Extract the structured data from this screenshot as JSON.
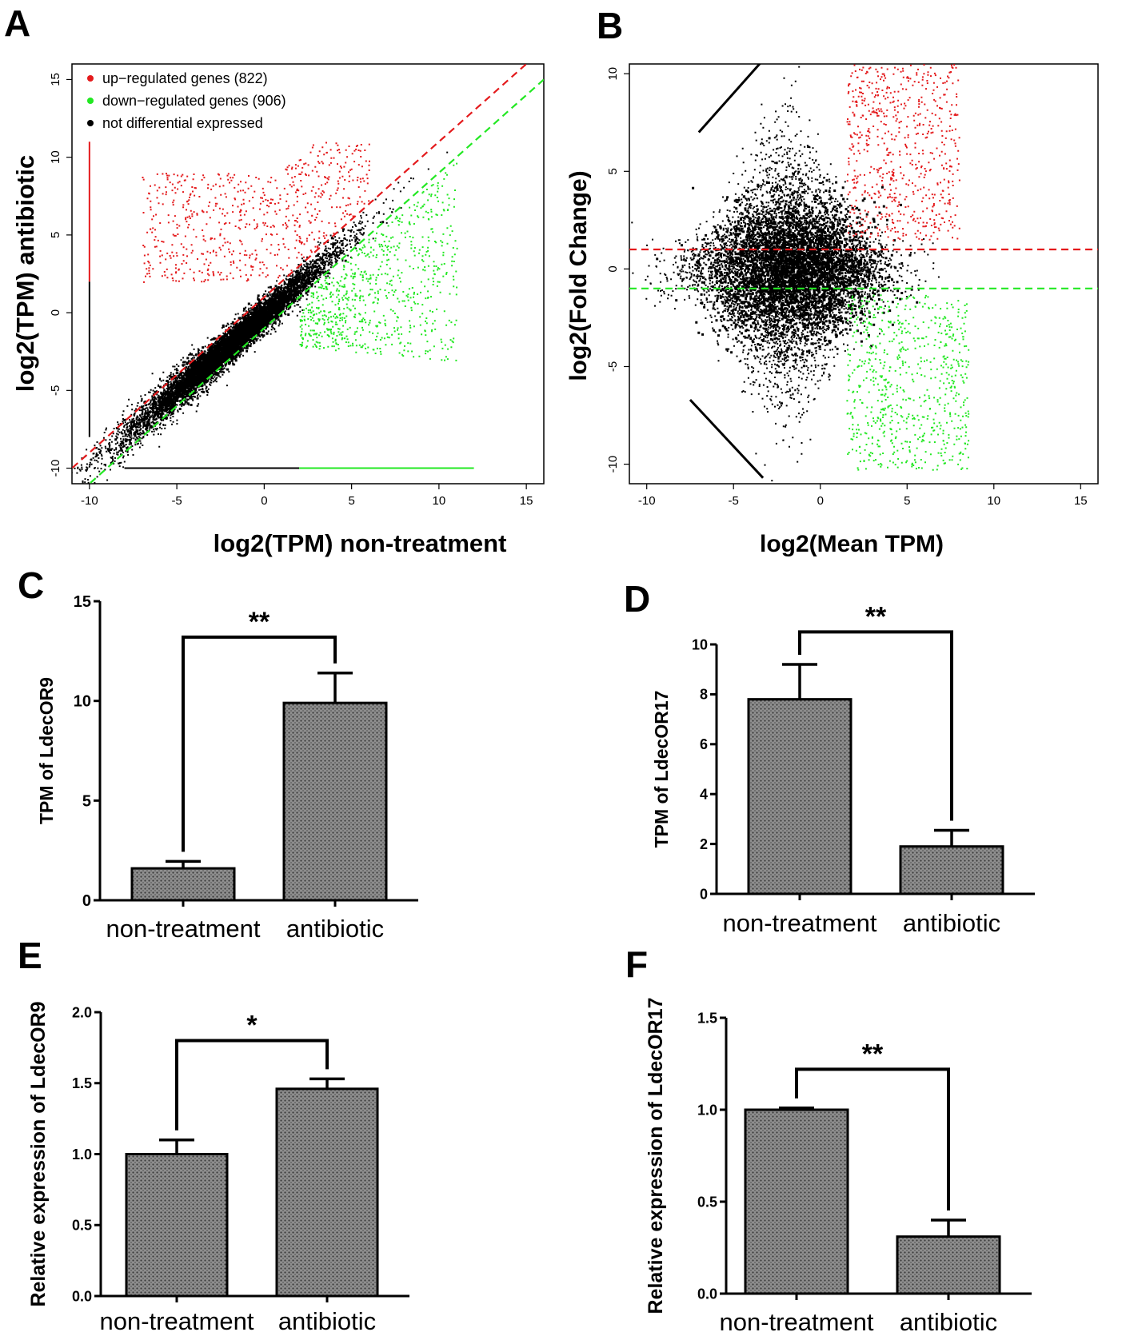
{
  "figure": {
    "colors": {
      "up": "#e41a1c",
      "down": "#22e822",
      "neutral": "#000000",
      "bar_fill": "#8a8a8a"
    }
  },
  "chart_data": [
    {
      "id": "A",
      "panel_label": "A",
      "type": "scatter",
      "xlabel": "log2(TPM) non-treatment",
      "ylabel": "log2(TPM) antibiotic",
      "xlim": [
        -11,
        16
      ],
      "ylim": [
        -11,
        16
      ],
      "xticks": [
        -10,
        -5,
        0,
        5,
        10,
        15
      ],
      "yticks": [
        -10,
        -5,
        0,
        5,
        10,
        15
      ],
      "legend": [
        {
          "label": "up−regulated genes (822)",
          "color": "#e41a1c"
        },
        {
          "label": "down−regulated genes (906)",
          "color": "#22e822"
        },
        {
          "label": "not differential expressed",
          "color": "#000000"
        }
      ],
      "threshold_lines": [
        {
          "color": "#e41a1c",
          "style": "dashed",
          "slope": 1,
          "intercept": 1
        },
        {
          "color": "#22e822",
          "style": "dashed",
          "slope": 1,
          "intercept": -1
        }
      ],
      "series": [
        {
          "name": "up-regulated genes",
          "count": 822,
          "color": "#e41a1c"
        },
        {
          "name": "down-regulated genes",
          "count": 906,
          "color": "#22e822"
        },
        {
          "name": "not differential expressed",
          "color": "#000000"
        }
      ]
    },
    {
      "id": "B",
      "panel_label": "B",
      "type": "scatter",
      "xlabel": "log2(Mean TPM)",
      "ylabel": "log2(Fold Change)",
      "xlim": [
        -11,
        16
      ],
      "ylim": [
        -11,
        10.5
      ],
      "xticks": [
        -10,
        -5,
        0,
        5,
        10,
        15
      ],
      "yticks": [
        -10,
        -5,
        0,
        5,
        10
      ],
      "threshold_lines": [
        {
          "color": "#e41a1c",
          "style": "dashed",
          "y": 1
        },
        {
          "color": "#22e822",
          "style": "dashed",
          "y": -1
        }
      ],
      "series": [
        {
          "name": "up-regulated genes",
          "color": "#e41a1c"
        },
        {
          "name": "down-regulated genes",
          "color": "#22e822"
        },
        {
          "name": "not differential expressed",
          "color": "#000000"
        }
      ]
    },
    {
      "id": "C",
      "panel_label": "C",
      "type": "bar",
      "categories": [
        "non-treatment",
        "antibiotic"
      ],
      "values": [
        1.6,
        9.9
      ],
      "errors": [
        0.35,
        1.5
      ],
      "ylabel": "TPM of LdecOR9",
      "ylim": [
        0,
        15
      ],
      "yticks": [
        0,
        5,
        10,
        15
      ],
      "significance": "**"
    },
    {
      "id": "D",
      "panel_label": "D",
      "type": "bar",
      "categories": [
        "non-treatment",
        "antibiotic"
      ],
      "values": [
        7.8,
        1.9
      ],
      "errors": [
        1.4,
        0.65
      ],
      "ylabel": "TPM of LdecOR17",
      "ylim": [
        0,
        10
      ],
      "yticks": [
        0,
        2,
        4,
        6,
        8,
        10
      ],
      "significance": "**"
    },
    {
      "id": "E",
      "panel_label": "E",
      "type": "bar",
      "categories": [
        "non-treatment",
        "antibiotic"
      ],
      "values": [
        1.0,
        1.46
      ],
      "errors": [
        0.1,
        0.07
      ],
      "ylabel": "Relative expression of LdecOR9",
      "ylim": [
        0,
        2
      ],
      "yticks": [
        "0.0",
        "0.5",
        "1.0",
        "1.5",
        "2.0"
      ],
      "significance": "*"
    },
    {
      "id": "F",
      "panel_label": "F",
      "type": "bar",
      "categories": [
        "non-treatment",
        "antibiotic"
      ],
      "values": [
        1.0,
        0.31
      ],
      "errors": [
        0.01,
        0.09
      ],
      "ylabel": "Relative expression of LdecOR17",
      "ylim": [
        0,
        1.5
      ],
      "yticks": [
        "0.0",
        "0.5",
        "1.0",
        "1.5"
      ],
      "significance": "**"
    }
  ]
}
